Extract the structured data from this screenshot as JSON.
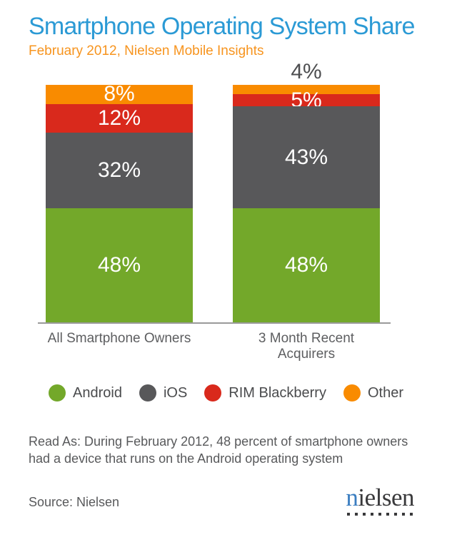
{
  "header": {
    "title": "Smartphone Operating System Share",
    "subtitle": "February 2012, Nielsen Mobile Insights"
  },
  "chart_data": {
    "type": "bar",
    "stacked": true,
    "percent": true,
    "title": "Smartphone Operating System Share",
    "subtitle": "February 2012, Nielsen Mobile Insights",
    "categories": [
      "All Smartphone Owners",
      "3 Month Recent Acquirers"
    ],
    "series": [
      {
        "name": "Android",
        "color": "#73A82A",
        "values": [
          48,
          48
        ]
      },
      {
        "name": "iOS",
        "color": "#58585A",
        "values": [
          32,
          43
        ]
      },
      {
        "name": "RIM Blackberry",
        "color": "#D9291C",
        "values": [
          12,
          5
        ]
      },
      {
        "name": "Other",
        "color": "#F98B00",
        "values": [
          8,
          4
        ]
      }
    ],
    "value_label_format": "{v}%",
    "ylim": [
      0,
      100
    ],
    "grid": false,
    "legend_position": "bottom"
  },
  "read_as": {
    "lines": [
      "Read As: During February 2012, 48 percent of smartphone owners",
      "had a device that runs on the Android operating system"
    ]
  },
  "footer": {
    "source": "Source: Nielsen",
    "logo": {
      "first": "n",
      "rest": "ielsen",
      "dots": 9
    }
  },
  "colors": {
    "title_blue": "#2B9AD5",
    "subtitle_orange": "#F7941E",
    "android_green": "#73A82A",
    "ios_gray": "#58585A",
    "rim_red": "#D9291C",
    "other_orange": "#F98B00",
    "bar_value_label": "#FFFFFF",
    "outside_value_label": "#4D4E50",
    "axis_line": "#9A9A9A",
    "axis_label": "#5D5E60",
    "legend_text": "#4A4B4D",
    "body_text": "#58595B",
    "logo_blue": "#3B7EC1",
    "logo_dark": "#39393B",
    "background": "#FFFFFF"
  }
}
